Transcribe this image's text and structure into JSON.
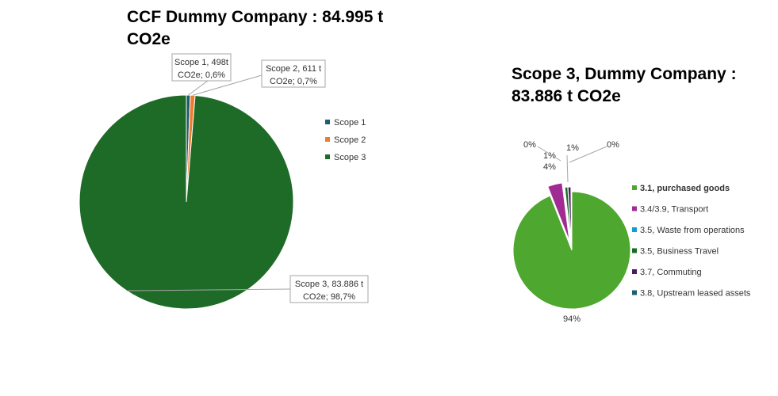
{
  "chart_data": [
    {
      "type": "pie",
      "title": "CCF Dummy Company :  84.995 t CO2e",
      "title_lines": [
        "CCF Dummy Company :  84.995 t",
        "CO2e"
      ],
      "series": [
        {
          "name": "Scope 1",
          "value": 498,
          "percent": 0.6,
          "color": "#1f5c6e",
          "label_lines": [
            "Scope 1, 498t",
            "CO2e; 0,6%"
          ]
        },
        {
          "name": "Scope 2",
          "value": 611,
          "percent": 0.7,
          "color": "#ed7d31",
          "label_lines": [
            "Scope 2, 611 t",
            "CO2e; 0,7%"
          ]
        },
        {
          "name": "Scope 3",
          "value": 83886,
          "percent": 98.7,
          "color": "#1e6b28",
          "label_lines": [
            "Scope 3, 83.886 t",
            "CO2e; 98,7%"
          ]
        }
      ],
      "legend_position": "right"
    },
    {
      "type": "pie",
      "title": "Scope 3, Dummy Company : 83.886 t CO2e",
      "title_lines": [
        "Scope 3, Dummy Company :",
        "83.886 t CO2e"
      ],
      "series": [
        {
          "name": "3.1, purchased goods",
          "percent_label": "94%",
          "value": 94,
          "color": "#4ea72e",
          "bold": true
        },
        {
          "name": "3.4/3.9, Transport",
          "percent_label": "4%",
          "value": 4,
          "color": "#a02b93"
        },
        {
          "name": "3.5, Waste from operations",
          "percent_label": "0%",
          "value": 0.2,
          "color": "#0f9ed5"
        },
        {
          "name": "3.5, Business Travel",
          "percent_label": "1%",
          "value": 0.8,
          "color": "#196b24"
        },
        {
          "name": "3.7, Commuting",
          "percent_label": "1%",
          "value": 0.8,
          "color": "#4a1a62"
        },
        {
          "name": "3.8,  Upstream leased assets",
          "percent_label": "0%",
          "value": 0.2,
          "color": "#1e5f74"
        }
      ],
      "legend_position": "right"
    }
  ]
}
